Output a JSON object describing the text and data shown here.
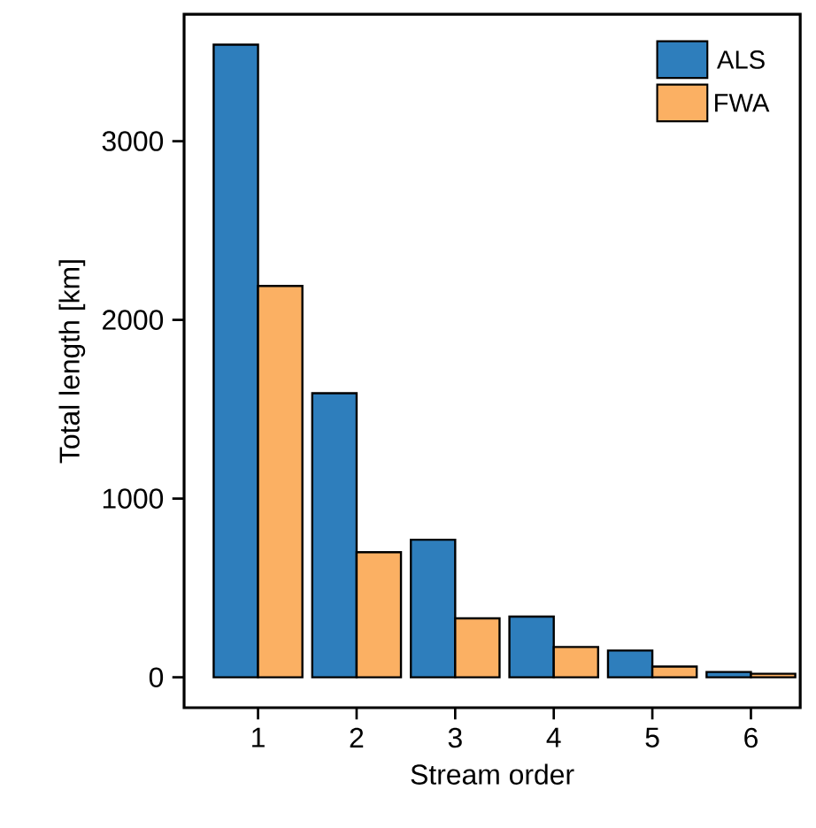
{
  "chart_data": {
    "type": "bar",
    "xlabel": "Stream order",
    "ylabel": "Total length [km]",
    "categories": [
      "1",
      "2",
      "3",
      "4",
      "5",
      "6"
    ],
    "series": [
      {
        "name": "ALS",
        "color": "#2e7ebc",
        "values": [
          3540,
          1590,
          770,
          340,
          150,
          30
        ]
      },
      {
        "name": "FWA",
        "color": "#fbb063",
        "values": [
          2190,
          700,
          330,
          170,
          60,
          20
        ]
      }
    ],
    "ylim": [
      -170,
      3710
    ],
    "yticks": [
      0,
      1000,
      2000,
      3000
    ],
    "legend": "top right"
  }
}
